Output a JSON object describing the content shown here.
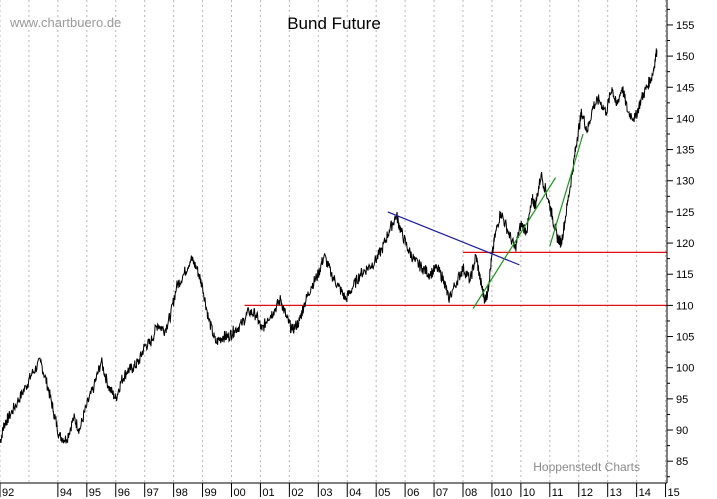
{
  "watermark": "www.chartbuero.de",
  "credit": "Hoppenstedt Charts",
  "chart_data": {
    "type": "line",
    "title": "Bund Future",
    "xlabel": "",
    "ylabel": "",
    "xlim": [
      1992.0,
      2015.05
    ],
    "ylim": [
      81.5,
      159
    ],
    "y_axis_side": "right",
    "grid": "vertical dotted at each year",
    "x_tick_labels": [
      "92",
      "94",
      "95",
      "96",
      "97",
      "98",
      "99",
      "00",
      "01",
      "02",
      "03",
      "04",
      "05",
      "06",
      "07",
      "08",
      "010",
      "10",
      "11",
      "12",
      "13",
      "14",
      "15"
    ],
    "x_tick_positions": [
      1992,
      1994,
      1995,
      1996,
      1997,
      1998,
      1999,
      2000,
      2001,
      2002,
      2003,
      2004,
      2005,
      2006,
      2007,
      2008,
      2009,
      2010,
      2011,
      2012,
      2013,
      2014,
      2015
    ],
    "y_ticks": [
      85,
      90,
      95,
      100,
      105,
      110,
      115,
      120,
      125,
      130,
      135,
      140,
      145,
      150,
      155
    ],
    "series": [
      {
        "color": "#000000",
        "x": [
          1992.0,
          1992.15,
          1992.3,
          1992.6,
          1992.9,
          1993.1,
          1993.4,
          1993.65,
          1993.85,
          1994.05,
          1994.3,
          1994.55,
          1994.75,
          1995.0,
          1995.25,
          1995.5,
          1995.75,
          1996.0,
          1996.2,
          1996.4,
          1996.6,
          1996.8,
          1997.0,
          1997.2,
          1997.45,
          1997.7,
          1997.9,
          1998.1,
          1998.35,
          1998.6,
          1998.8,
          1999.0,
          1999.2,
          1999.45,
          1999.7,
          1999.9,
          2000.1,
          2000.35,
          2000.6,
          2000.85,
          2001.05,
          2001.25,
          2001.45,
          2001.7,
          2001.9,
          2002.1,
          2002.35,
          2002.5,
          2002.75,
          2003.0,
          2003.2,
          2003.45,
          2003.7,
          2003.95,
          2004.2,
          2004.45,
          2004.7,
          2004.95,
          2005.2,
          2005.45,
          2005.7,
          2005.85,
          2006.1,
          2006.35,
          2006.6,
          2006.85,
          2007.1,
          2007.35,
          2007.5,
          2007.8,
          2008.0,
          2008.25,
          2008.45,
          2008.6,
          2008.75,
          2008.85,
          2008.95,
          2009.1,
          2009.3,
          2009.55,
          2009.8,
          2010.0,
          2010.2,
          2010.4,
          2010.5,
          2010.7,
          2010.95,
          2011.1,
          2011.25,
          2011.4,
          2011.6,
          2011.8,
          2011.95,
          2012.1,
          2012.3,
          2012.5,
          2012.7,
          2012.95,
          2013.15,
          2013.3,
          2013.5,
          2013.7,
          2013.95,
          2014.15,
          2014.35,
          2014.55,
          2014.7
        ],
        "y": [
          88,
          91,
          92,
          94.5,
          97,
          99,
          101,
          97,
          93,
          89,
          88.5,
          92,
          90,
          94,
          97,
          101,
          97,
          95,
          98,
          99.5,
          100,
          101,
          103.5,
          104,
          107,
          106,
          108.5,
          113,
          115,
          117.5,
          116,
          113,
          108,
          104,
          105,
          105,
          106,
          107,
          109,
          108.5,
          106,
          108,
          109,
          111,
          108,
          106,
          107.5,
          110,
          113,
          115,
          118,
          115,
          113,
          111,
          113,
          115,
          116,
          117,
          119,
          122,
          124.5,
          122,
          119,
          117,
          116,
          115,
          116,
          114,
          111,
          114,
          116,
          114,
          118,
          114,
          111,
          112,
          116,
          121,
          125,
          122,
          119,
          123,
          122,
          127,
          126,
          131,
          127,
          124,
          121,
          120,
          126,
          132,
          137,
          141,
          138,
          142,
          143,
          141,
          145,
          142,
          145,
          141,
          140,
          143,
          145,
          147,
          151
        ]
      }
    ],
    "annotations": {
      "horizontal_lines": [
        {
          "color": "#e01010",
          "y": 110,
          "x_start": 2000.45,
          "x_end": 2015.05
        },
        {
          "color": "#e01010",
          "y": 118.5,
          "x_start": 2008.0,
          "x_end": 2015.05
        }
      ],
      "trend_lines": [
        {
          "color": "#1a1aa0",
          "points": [
            [
              2005.4,
              125
            ],
            [
              2009.95,
              116.5
            ]
          ]
        },
        {
          "color": "#1a9a1a",
          "points": [
            [
              2008.35,
              109.5
            ],
            [
              2011.2,
              130.5
            ]
          ]
        },
        {
          "color": "#1a9a1a",
          "points": [
            [
              2011.0,
              119.5
            ],
            [
              2012.15,
              137.5
            ]
          ]
        }
      ]
    }
  }
}
